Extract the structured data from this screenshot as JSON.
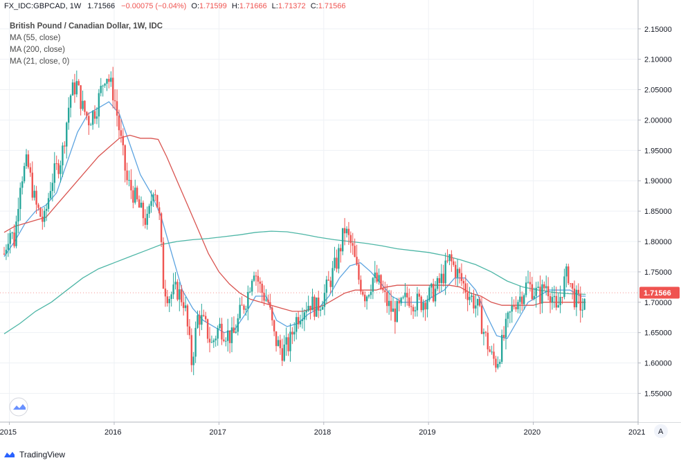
{
  "header": {
    "symbol": "FX_IDC:GBPCAD, 1W",
    "last": "1.71566",
    "change": "−0.00075 (−0.04%)",
    "o_label": "O:",
    "o_value": "1.71599",
    "h_label": "H:",
    "h_value": "1.71666",
    "l_label": "L:",
    "l_value": "1.71372",
    "c_label": "C:",
    "c_value": "1.71566"
  },
  "legend": {
    "title": "British Pound / Canadian Dollar, 1W, IDC",
    "ma55": "MA (55, close)",
    "ma200": "MA (200, close)",
    "ma21": "MA (21, close, 0)"
  },
  "price_tag": "1.71566",
  "brand": "TradingView",
  "auto_button": "A",
  "colors": {
    "up": "#26a69a",
    "down": "#ef5350",
    "ma21": "#5ba3e0",
    "ma55": "#d9534f",
    "ma200": "#4db6a6",
    "grid": "#eef1f5",
    "axis": "#b2b5be",
    "tag": "#ef5350"
  },
  "icons": {
    "logo": "tradingview-cloud-icon",
    "auto": "auto-scale-button"
  },
  "chart_data": {
    "type": "candlestick",
    "title": "British Pound / Canadian Dollar, 1W, IDC",
    "ylim": [
      1.53,
      2.16
    ],
    "xlim": [
      2014.95,
      2021.0
    ],
    "y_ticks": [
      "2.15000",
      "2.10000",
      "2.05000",
      "2.00000",
      "1.95000",
      "1.90000",
      "1.85000",
      "1.80000",
      "1.75000",
      "1.70000",
      "1.65000",
      "1.60000",
      "1.55000"
    ],
    "x_ticks": [
      {
        "value": 2015,
        "label": "2015"
      },
      {
        "value": 2016,
        "label": "2016"
      },
      {
        "value": 2017,
        "label": "2017"
      },
      {
        "value": 2018,
        "label": "2018"
      },
      {
        "value": 2019,
        "label": "2019"
      },
      {
        "value": 2020,
        "label": "2020"
      },
      {
        "value": 2021,
        "label": "2021"
      }
    ],
    "close_path": [
      [
        2014.95,
        1.78
      ],
      [
        2015.0,
        1.82
      ],
      [
        2015.05,
        1.8
      ],
      [
        2015.1,
        1.9
      ],
      [
        2015.17,
        1.93
      ],
      [
        2015.25,
        1.86
      ],
      [
        2015.33,
        1.83
      ],
      [
        2015.4,
        1.9
      ],
      [
        2015.5,
        1.94
      ],
      [
        2015.58,
        2.04
      ],
      [
        2015.64,
        2.06
      ],
      [
        2015.7,
        2.02
      ],
      [
        2015.76,
        2.0
      ],
      [
        2015.83,
        2.02
      ],
      [
        2015.92,
        2.08
      ],
      [
        2016.0,
        2.04
      ],
      [
        2016.06,
        1.97
      ],
      [
        2016.12,
        1.9
      ],
      [
        2016.18,
        1.88
      ],
      [
        2016.25,
        1.85
      ],
      [
        2016.32,
        1.83
      ],
      [
        2016.38,
        1.9
      ],
      [
        2016.43,
        1.84
      ],
      [
        2016.47,
        1.73
      ],
      [
        2016.52,
        1.71
      ],
      [
        2016.6,
        1.72
      ],
      [
        2016.67,
        1.7
      ],
      [
        2016.74,
        1.6
      ],
      [
        2016.8,
        1.68
      ],
      [
        2016.87,
        1.66
      ],
      [
        2016.93,
        1.63
      ],
      [
        2017.0,
        1.66
      ],
      [
        2017.07,
        1.65
      ],
      [
        2017.13,
        1.64
      ],
      [
        2017.2,
        1.68
      ],
      [
        2017.27,
        1.71
      ],
      [
        2017.33,
        1.76
      ],
      [
        2017.4,
        1.72
      ],
      [
        2017.47,
        1.7
      ],
      [
        2017.53,
        1.64
      ],
      [
        2017.6,
        1.62
      ],
      [
        2017.67,
        1.63
      ],
      [
        2017.73,
        1.67
      ],
      [
        2017.8,
        1.69
      ],
      [
        2017.87,
        1.7
      ],
      [
        2017.93,
        1.69
      ],
      [
        2018.0,
        1.71
      ],
      [
        2018.07,
        1.74
      ],
      [
        2018.13,
        1.77
      ],
      [
        2018.2,
        1.82
      ],
      [
        2018.27,
        1.79
      ],
      [
        2018.33,
        1.74
      ],
      [
        2018.4,
        1.71
      ],
      [
        2018.47,
        1.74
      ],
      [
        2018.53,
        1.73
      ],
      [
        2018.6,
        1.7
      ],
      [
        2018.67,
        1.68
      ],
      [
        2018.73,
        1.69
      ],
      [
        2018.8,
        1.71
      ],
      [
        2018.87,
        1.7
      ],
      [
        2018.93,
        1.7
      ],
      [
        2019.0,
        1.71
      ],
      [
        2019.07,
        1.72
      ],
      [
        2019.13,
        1.74
      ],
      [
        2019.2,
        1.77
      ],
      [
        2019.27,
        1.75
      ],
      [
        2019.33,
        1.73
      ],
      [
        2019.4,
        1.71
      ],
      [
        2019.47,
        1.69
      ],
      [
        2019.53,
        1.65
      ],
      [
        2019.6,
        1.61
      ],
      [
        2019.65,
        1.6
      ],
      [
        2019.7,
        1.63
      ],
      [
        2019.76,
        1.67
      ],
      [
        2019.82,
        1.7
      ],
      [
        2019.88,
        1.71
      ],
      [
        2019.94,
        1.73
      ],
      [
        2020.0,
        1.72
      ],
      [
        2020.06,
        1.71
      ],
      [
        2020.12,
        1.73
      ],
      [
        2020.18,
        1.71
      ],
      [
        2020.22,
        1.68
      ],
      [
        2020.27,
        1.72
      ],
      [
        2020.33,
        1.75
      ],
      [
        2020.38,
        1.71
      ],
      [
        2020.43,
        1.7
      ],
      [
        2020.47,
        1.69
      ],
      [
        2020.5,
        1.7157
      ]
    ],
    "series": [
      {
        "name": "MA (21, close, 0)",
        "color": "#5ba3e0",
        "points": [
          [
            2014.95,
            1.775
          ],
          [
            2015.05,
            1.8
          ],
          [
            2015.15,
            1.83
          ],
          [
            2015.25,
            1.85
          ],
          [
            2015.35,
            1.86
          ],
          [
            2015.45,
            1.88
          ],
          [
            2015.55,
            1.93
          ],
          [
            2015.65,
            1.98
          ],
          [
            2015.75,
            2.01
          ],
          [
            2015.85,
            2.02
          ],
          [
            2015.95,
            2.03
          ],
          [
            2016.05,
            2.01
          ],
          [
            2016.15,
            1.96
          ],
          [
            2016.25,
            1.91
          ],
          [
            2016.35,
            1.88
          ],
          [
            2016.45,
            1.84
          ],
          [
            2016.55,
            1.78
          ],
          [
            2016.65,
            1.72
          ],
          [
            2016.75,
            1.69
          ],
          [
            2016.85,
            1.67
          ],
          [
            2016.95,
            1.66
          ],
          [
            2017.05,
            1.65
          ],
          [
            2017.15,
            1.655
          ],
          [
            2017.25,
            1.68
          ],
          [
            2017.35,
            1.71
          ],
          [
            2017.45,
            1.71
          ],
          [
            2017.55,
            1.67
          ],
          [
            2017.65,
            1.66
          ],
          [
            2017.75,
            1.665
          ],
          [
            2017.85,
            1.68
          ],
          [
            2017.95,
            1.69
          ],
          [
            2018.05,
            1.71
          ],
          [
            2018.15,
            1.74
          ],
          [
            2018.25,
            1.76
          ],
          [
            2018.35,
            1.765
          ],
          [
            2018.45,
            1.75
          ],
          [
            2018.55,
            1.73
          ],
          [
            2018.65,
            1.71
          ],
          [
            2018.75,
            1.7
          ],
          [
            2018.85,
            1.7
          ],
          [
            2018.95,
            1.7
          ],
          [
            2019.05,
            1.71
          ],
          [
            2019.15,
            1.72
          ],
          [
            2019.25,
            1.74
          ],
          [
            2019.35,
            1.74
          ],
          [
            2019.45,
            1.72
          ],
          [
            2019.55,
            1.68
          ],
          [
            2019.65,
            1.645
          ],
          [
            2019.75,
            1.64
          ],
          [
            2019.85,
            1.67
          ],
          [
            2019.95,
            1.7
          ],
          [
            2020.05,
            1.71
          ],
          [
            2020.15,
            1.72
          ],
          [
            2020.25,
            1.72
          ],
          [
            2020.35,
            1.72
          ],
          [
            2020.45,
            1.71
          ],
          [
            2020.5,
            1.71
          ]
        ]
      },
      {
        "name": "MA (55, close)",
        "color": "#d9534f",
        "points": [
          [
            2014.95,
            1.815
          ],
          [
            2015.05,
            1.825
          ],
          [
            2015.15,
            1.83
          ],
          [
            2015.25,
            1.835
          ],
          [
            2015.35,
            1.84
          ],
          [
            2015.45,
            1.86
          ],
          [
            2015.55,
            1.88
          ],
          [
            2015.65,
            1.9
          ],
          [
            2015.75,
            1.92
          ],
          [
            2015.85,
            1.94
          ],
          [
            2015.95,
            1.955
          ],
          [
            2016.05,
            1.97
          ],
          [
            2016.15,
            1.975
          ],
          [
            2016.25,
            1.97
          ],
          [
            2016.35,
            1.97
          ],
          [
            2016.42,
            1.968
          ],
          [
            2016.5,
            1.94
          ],
          [
            2016.6,
            1.9
          ],
          [
            2016.7,
            1.86
          ],
          [
            2016.8,
            1.82
          ],
          [
            2016.9,
            1.78
          ],
          [
            2017.0,
            1.75
          ],
          [
            2017.1,
            1.73
          ],
          [
            2017.2,
            1.715
          ],
          [
            2017.3,
            1.705
          ],
          [
            2017.4,
            1.7
          ],
          [
            2017.5,
            1.695
          ],
          [
            2017.6,
            1.69
          ],
          [
            2017.7,
            1.685
          ],
          [
            2017.8,
            1.685
          ],
          [
            2017.9,
            1.69
          ],
          [
            2018.0,
            1.695
          ],
          [
            2018.1,
            1.705
          ],
          [
            2018.2,
            1.715
          ],
          [
            2018.3,
            1.72
          ],
          [
            2018.4,
            1.72
          ],
          [
            2018.5,
            1.72
          ],
          [
            2018.6,
            1.725
          ],
          [
            2018.7,
            1.728
          ],
          [
            2018.8,
            1.728
          ],
          [
            2018.9,
            1.728
          ],
          [
            2019.0,
            1.728
          ],
          [
            2019.1,
            1.728
          ],
          [
            2019.2,
            1.728
          ],
          [
            2019.3,
            1.725
          ],
          [
            2019.4,
            1.715
          ],
          [
            2019.5,
            1.71
          ],
          [
            2019.6,
            1.7
          ],
          [
            2019.7,
            1.695
          ],
          [
            2019.8,
            1.695
          ],
          [
            2019.9,
            1.695
          ],
          [
            2020.0,
            1.695
          ],
          [
            2020.1,
            1.7
          ],
          [
            2020.2,
            1.7
          ],
          [
            2020.3,
            1.7
          ],
          [
            2020.4,
            1.7
          ],
          [
            2020.5,
            1.7
          ]
        ]
      },
      {
        "name": "MA (200, close)",
        "color": "#4db6a6",
        "points": [
          [
            2014.95,
            1.648
          ],
          [
            2015.1,
            1.665
          ],
          [
            2015.25,
            1.685
          ],
          [
            2015.4,
            1.7
          ],
          [
            2015.55,
            1.72
          ],
          [
            2015.7,
            1.74
          ],
          [
            2015.85,
            1.755
          ],
          [
            2016.0,
            1.765
          ],
          [
            2016.15,
            1.775
          ],
          [
            2016.3,
            1.785
          ],
          [
            2016.45,
            1.795
          ],
          [
            2016.6,
            1.8
          ],
          [
            2016.75,
            1.803
          ],
          [
            2016.9,
            1.805
          ],
          [
            2017.05,
            1.808
          ],
          [
            2017.2,
            1.811
          ],
          [
            2017.35,
            1.815
          ],
          [
            2017.5,
            1.817
          ],
          [
            2017.65,
            1.816
          ],
          [
            2017.8,
            1.812
          ],
          [
            2017.95,
            1.807
          ],
          [
            2018.1,
            1.803
          ],
          [
            2018.25,
            1.8
          ],
          [
            2018.4,
            1.797
          ],
          [
            2018.55,
            1.793
          ],
          [
            2018.7,
            1.788
          ],
          [
            2018.85,
            1.785
          ],
          [
            2019.0,
            1.782
          ],
          [
            2019.15,
            1.777
          ],
          [
            2019.3,
            1.77
          ],
          [
            2019.45,
            1.762
          ],
          [
            2019.6,
            1.75
          ],
          [
            2019.75,
            1.735
          ],
          [
            2019.9,
            1.725
          ],
          [
            2020.05,
            1.72
          ],
          [
            2020.2,
            1.716
          ],
          [
            2020.35,
            1.714
          ],
          [
            2020.5,
            1.713
          ]
        ]
      }
    ]
  }
}
